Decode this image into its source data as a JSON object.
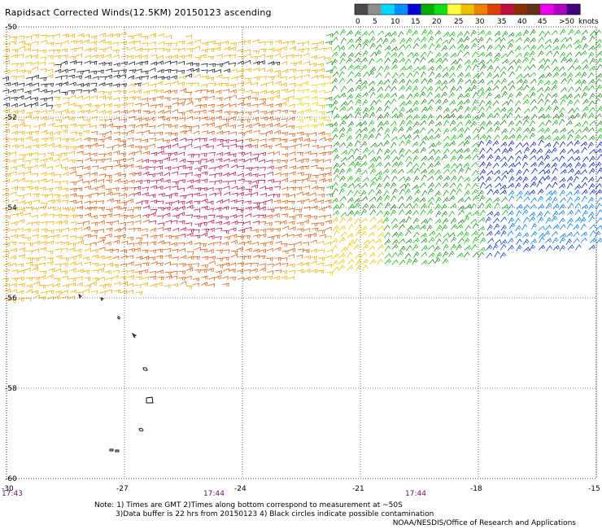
{
  "title": "Rapidsact Corrected Winds(12.5KM) 20150123 ascending",
  "legend": {
    "unit": "knots",
    "swatches": [
      "#4a4a4a",
      "#8e8e8e",
      "#00d8ff",
      "#0090ff",
      "#0000d8",
      "#00b000",
      "#10e010",
      "#ffff40",
      "#f0c000",
      "#f08000",
      "#e04000",
      "#c01040",
      "#8a3000",
      "#603018",
      "#f000f0",
      "#b000c0",
      "#400080"
    ],
    "labels": [
      "0",
      "5",
      "10",
      "15",
      "20",
      "25",
      "30",
      "35",
      "40",
      "45",
      ">50"
    ]
  },
  "map": {
    "lon_ticks": [
      "-30",
      "-27",
      "-24",
      "-21",
      "-18",
      "-15"
    ],
    "lat_ticks": [
      "-50",
      "-52",
      "-54",
      "-56",
      "-58",
      "-60"
    ],
    "lon_range": [
      -30,
      -15
    ],
    "lat_range": [
      -60,
      -50
    ],
    "times": [
      "17:43",
      "17:44",
      "17:44"
    ],
    "gridlines": true
  },
  "notes": {
    "line1": "Note: 1) Times are GMT 2)Times along bottom correspond to measurement at ~50S",
    "line2": "3)Data buffer is 22 hrs from 20150123 4) Black circles indicate possible contamination"
  },
  "credit": "NOAA/NESDIS/Office of Research and Applications"
}
